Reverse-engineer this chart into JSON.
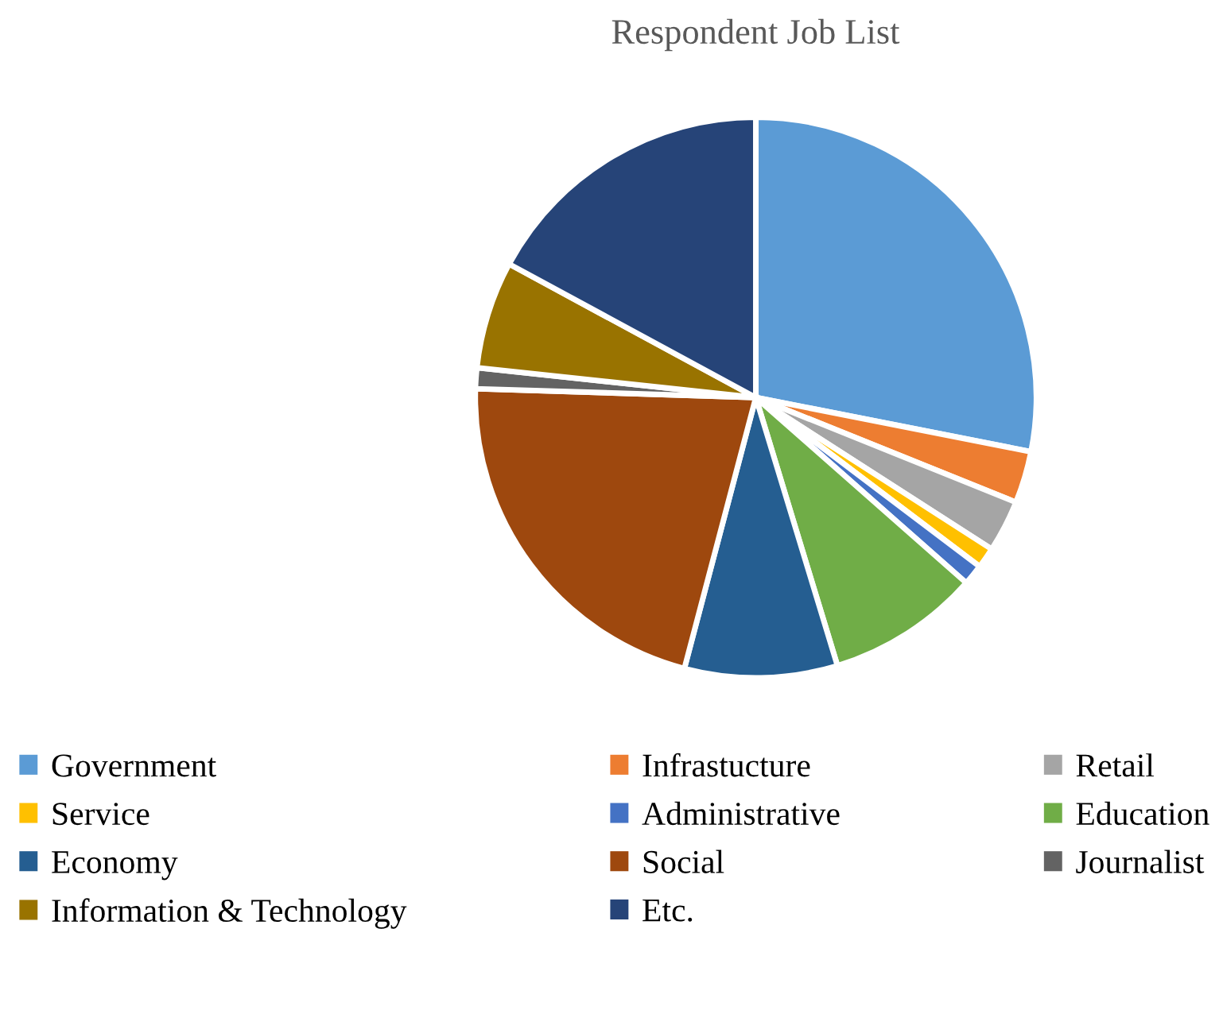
{
  "chart_data": {
    "type": "pie",
    "title": "Respondent Job List",
    "categories": [
      "Government",
      "Infrastucture",
      "Retail",
      "Service",
      "Administrative",
      "Education",
      "Economy",
      "Social",
      "Journalist",
      "Information & Technology",
      "Etc."
    ],
    "values": [
      28.1,
      3.0,
      3.0,
      1.2,
      1.2,
      8.8,
      8.8,
      21.4,
      1.2,
      6.2,
      17.1
    ],
    "colors": [
      "#5b9bd5",
      "#ed7d31",
      "#a5a5a5",
      "#ffc000",
      "#4472c4",
      "#70ad47",
      "#255e91",
      "#9e480e",
      "#636363",
      "#997300",
      "#264478"
    ],
    "legend": "bottom"
  }
}
